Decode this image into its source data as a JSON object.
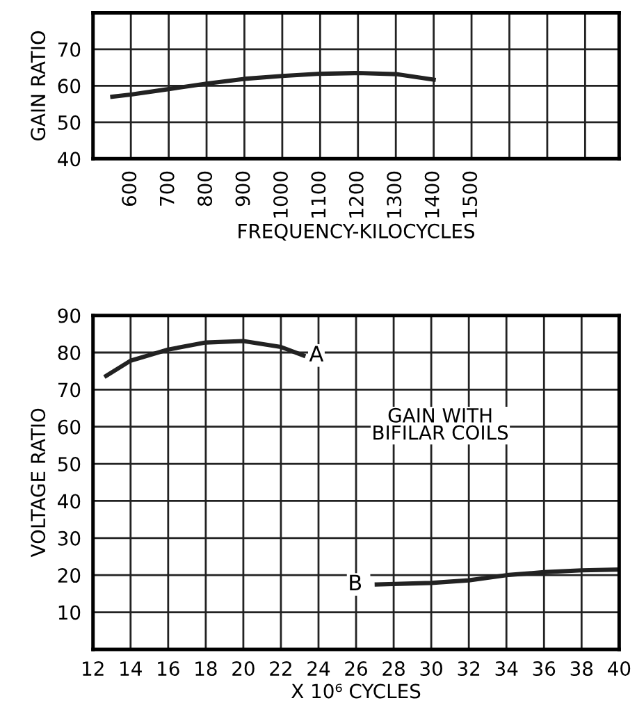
{
  "chart_data": [
    {
      "type": "line",
      "ylabel": "GAIN RATIO",
      "xlabel": "FREQUENCY-KILOCYCLES",
      "xlim": [
        500,
        1890
      ],
      "ylim": [
        40,
        80
      ],
      "xticks": [
        600,
        700,
        800,
        900,
        1000,
        1100,
        1200,
        1300,
        1400,
        1500,
        {
          "value": 1600,
          "label": null
        },
        {
          "value": 1700,
          "label": null
        },
        {
          "value": 1800,
          "label": null
        }
      ],
      "yticks": [
        40,
        50,
        60,
        70
      ],
      "grid": true,
      "legend": false,
      "series": [
        {
          "color": "#222222",
          "x": [
            551,
            600,
            700,
            800,
            900,
            1000,
            1100,
            1200,
            1300,
            1400
          ],
          "values": [
            57,
            57.6,
            59.1,
            60.6,
            61.9,
            62.7,
            63.3,
            63.5,
            63.2,
            61.7
          ]
        }
      ]
    },
    {
      "type": "line",
      "ylabel": "VOLTAGE RATIO",
      "xlabel": "X 10⁶ CYCLES",
      "xlim": [
        12,
        40
      ],
      "ylim": [
        0,
        90
      ],
      "xticks": [
        12,
        14,
        16,
        18,
        20,
        22,
        24,
        26,
        28,
        30,
        32,
        34,
        36,
        38,
        40
      ],
      "yticks": [
        10,
        20,
        30,
        40,
        50,
        60,
        70,
        80,
        90
      ],
      "grid": true,
      "legend": false,
      "annotations": [
        "GAIN WITH\nBIFILAR COILS"
      ],
      "series": [
        {
          "name": "A",
          "color": "#222222",
          "x": [
            12.7,
            14,
            16,
            18,
            20,
            22,
            23.2
          ],
          "values": [
            73.7,
            77.8,
            80.8,
            82.7,
            83.1,
            81.5,
            79.2
          ]
        },
        {
          "name": "B",
          "color": "#222222",
          "x": [
            27.1,
            30,
            32,
            34,
            36,
            38,
            40
          ],
          "values": [
            17.5,
            17.9,
            18.6,
            20,
            20.8,
            21.3,
            21.5
          ]
        }
      ]
    }
  ]
}
